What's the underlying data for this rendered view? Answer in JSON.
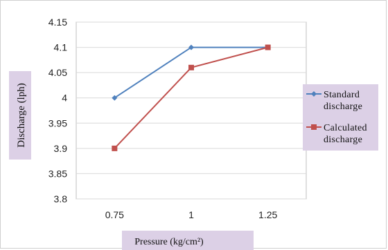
{
  "chart_data": {
    "type": "line",
    "categories": [
      "0.75",
      "1",
      "1.25"
    ],
    "series": [
      {
        "name": "Standard discharge",
        "name_lines": [
          "Standard",
          "discharge"
        ],
        "values": [
          4.0,
          4.1,
          4.1
        ],
        "color": "#4f81bd",
        "marker": "diamond"
      },
      {
        "name": "Calculated discharge",
        "name_lines": [
          "Calculated",
          "discharge"
        ],
        "values": [
          3.9,
          4.06,
          4.1
        ],
        "color": "#c0504d",
        "marker": "square"
      }
    ],
    "ylim": [
      3.8,
      4.15
    ],
    "yticks": [
      "3.8",
      "3.85",
      "3.9",
      "3.95",
      "4",
      "4.05",
      "4.1",
      "4.15"
    ],
    "ylabel": "Discharge  (lph)",
    "xlabel": "Pressure  (kg/cm²)",
    "grid": "horizontal",
    "legend_position": "right"
  }
}
